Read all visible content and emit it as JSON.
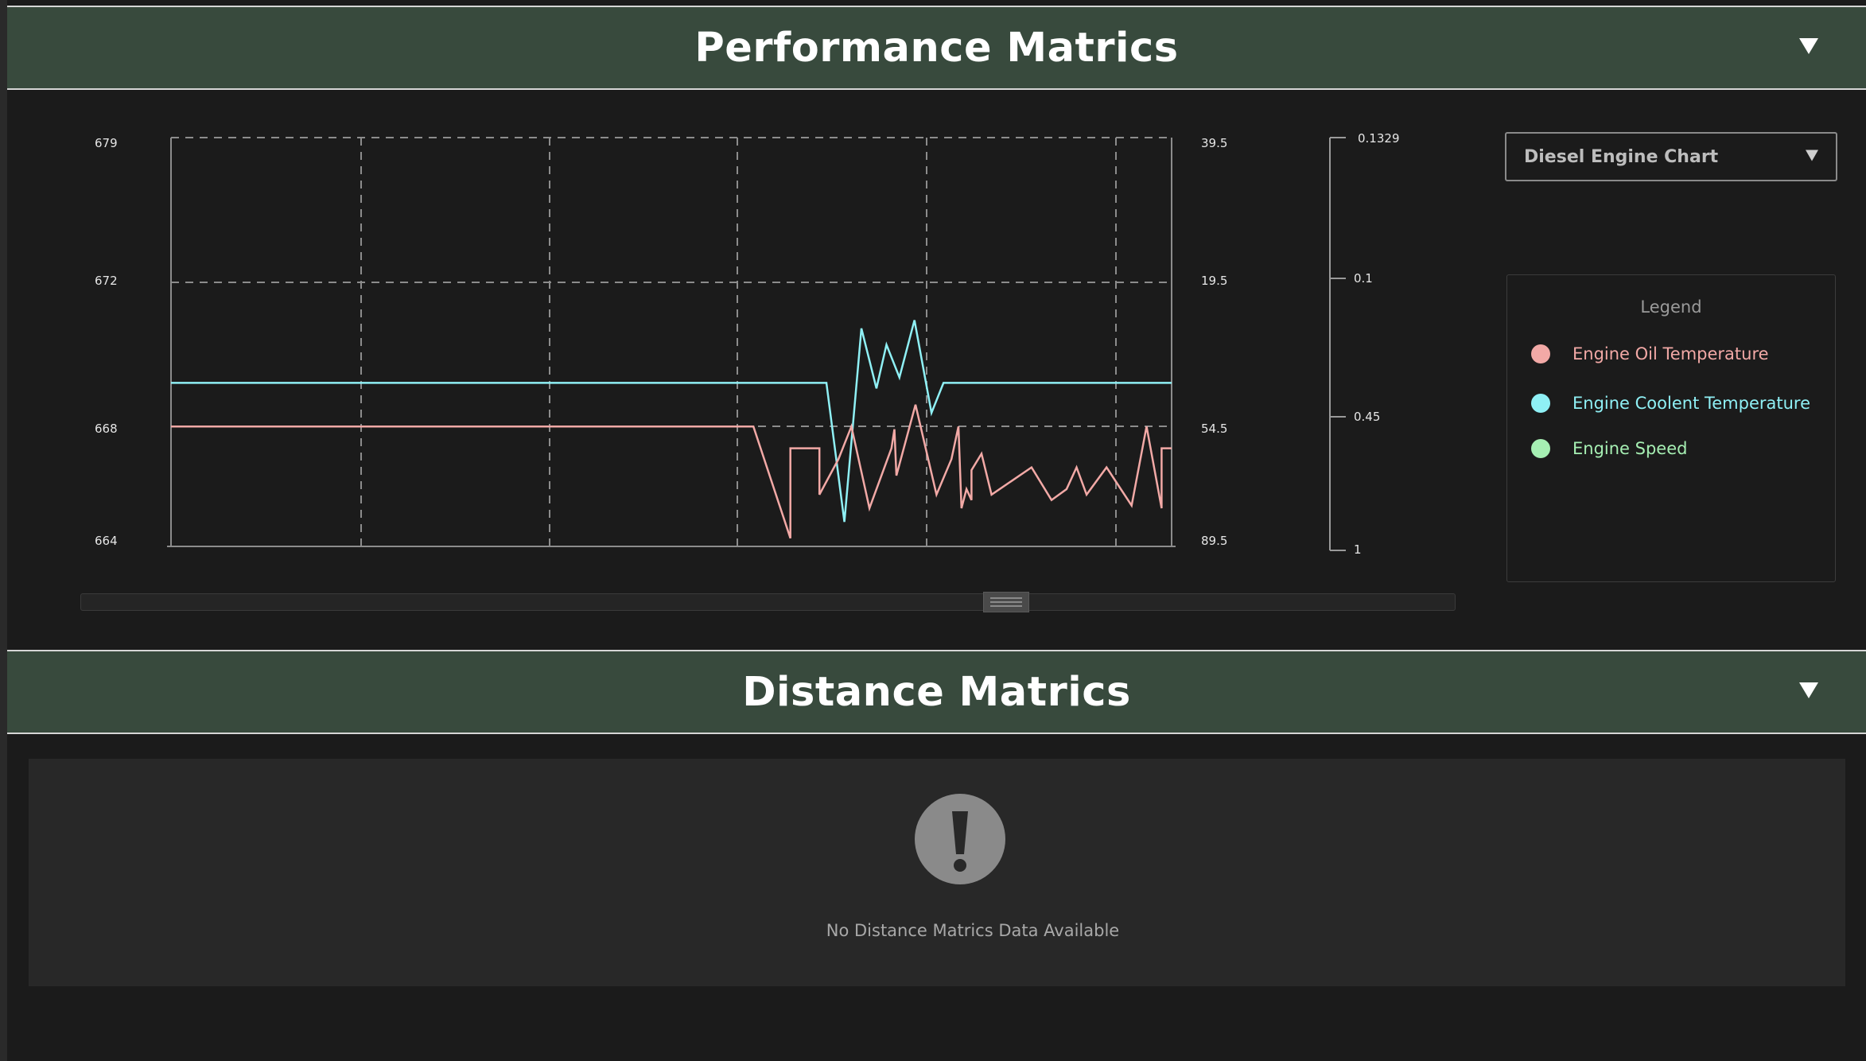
{
  "performance": {
    "title": "Performance Matrics",
    "caret_icon": "caret-down-icon",
    "chart_select": {
      "value": "Diesel Engine Chart",
      "icon": "caret-down-icon"
    },
    "legend": {
      "title": "Legend",
      "items": [
        {
          "label": "Engine Oil Temperature",
          "color": "#f2a9a6"
        },
        {
          "label": "Engine Coolent Temperature",
          "color": "#8ff0f5"
        },
        {
          "label": "Engine Speed",
          "color": "#a6efb3"
        }
      ]
    }
  },
  "chart_data": {
    "type": "line",
    "grid": true,
    "axes": {
      "left": {
        "ticks": [
          "679",
          "672",
          "668",
          "664"
        ]
      },
      "right1": {
        "ticks": [
          "39.5",
          "19.5",
          "54.5",
          "89.5"
        ]
      },
      "right2": {
        "ticks": [
          "0.1329",
          "0.1",
          "0.45",
          "1"
        ]
      }
    },
    "series": [
      {
        "name": "Engine Coolent Temperature",
        "color": "#8ff0f5",
        "axis": "right1",
        "values": [
          [
            0,
            670
          ],
          [
            0.655,
            670
          ],
          [
            0.673,
            664.9
          ],
          [
            0.69,
            672
          ],
          [
            0.705,
            669.8
          ],
          [
            0.715,
            671.4
          ],
          [
            0.728,
            670.2
          ],
          [
            0.743,
            672.3
          ],
          [
            0.76,
            668.9
          ],
          [
            0.772,
            670
          ],
          [
            1,
            670
          ]
        ]
      },
      {
        "name": "Engine Oil Temperature",
        "color": "#f2a9a6",
        "axis": "left",
        "values": [
          [
            0,
            668.4
          ],
          [
            0.582,
            668.4
          ],
          [
            0.619,
            664.3
          ],
          [
            0.619,
            667.6
          ],
          [
            0.648,
            667.6
          ],
          [
            0.648,
            665.9
          ],
          [
            0.667,
            667.2
          ],
          [
            0.68,
            668.4
          ],
          [
            0.698,
            665.4
          ],
          [
            0.72,
            667.6
          ],
          [
            0.723,
            668.3
          ],
          [
            0.725,
            666.6
          ],
          [
            0.744,
            669.2
          ],
          [
            0.765,
            665.9
          ],
          [
            0.78,
            667.2
          ],
          [
            0.787,
            668.4
          ],
          [
            0.79,
            665.4
          ],
          [
            0.795,
            666.1
          ],
          [
            0.8,
            665.7
          ],
          [
            0.8,
            666.8
          ],
          [
            0.81,
            667.4
          ],
          [
            0.82,
            665.9
          ],
          [
            0.84,
            666.4
          ],
          [
            0.86,
            666.9
          ],
          [
            0.88,
            665.7
          ],
          [
            0.895,
            666.1
          ],
          [
            0.905,
            666.9
          ],
          [
            0.915,
            665.9
          ],
          [
            0.935,
            666.9
          ],
          [
            0.96,
            665.5
          ],
          [
            0.975,
            668.4
          ],
          [
            0.99,
            665.4
          ],
          [
            0.99,
            667.6
          ],
          [
            1,
            667.6
          ]
        ]
      }
    ]
  },
  "distance": {
    "title": "Distance Matrics",
    "caret_icon": "caret-down-icon",
    "empty_message": "No Distance Matrics Data  Available",
    "warning_icon": "exclamation-circle-icon"
  }
}
